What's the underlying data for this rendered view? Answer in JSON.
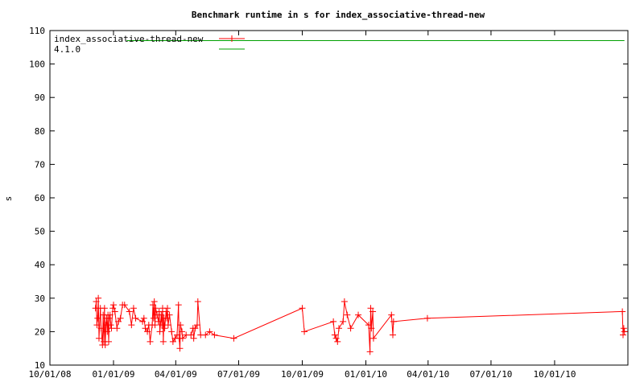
{
  "chart_data": {
    "type": "line",
    "title": "Benchmark runtime in s for index_associative-thread-new",
    "xlabel": "",
    "ylabel": "s",
    "ylim": [
      10,
      110
    ],
    "xlim": [
      "2008-10-01",
      "2011-01-15"
    ],
    "yticks": [
      10,
      20,
      30,
      40,
      50,
      60,
      70,
      80,
      90,
      100,
      110
    ],
    "xticks": [
      "10/01/08",
      "01/01/09",
      "04/01/09",
      "07/01/09",
      "10/01/09",
      "01/01/10",
      "04/01/10",
      "07/01/10",
      "10/01/10"
    ],
    "legend_position": "top-left",
    "grid": false,
    "series": [
      {
        "name": "index_associative-thread-new",
        "color": "#ff0000",
        "marker": "plus",
        "points": [
          [
            "2008-12-06",
            27
          ],
          [
            "2008-12-07",
            29
          ],
          [
            "2008-12-08",
            22
          ],
          [
            "2008-12-09",
            24
          ],
          [
            "2008-12-10",
            30
          ],
          [
            "2008-12-11",
            18
          ],
          [
            "2008-12-13",
            27
          ],
          [
            "2008-12-14",
            21
          ],
          [
            "2008-12-16",
            16
          ],
          [
            "2008-12-17",
            25
          ],
          [
            "2008-12-18",
            17
          ],
          [
            "2008-12-19",
            27
          ],
          [
            "2008-12-20",
            16
          ],
          [
            "2008-12-21",
            22
          ],
          [
            "2008-12-22",
            24
          ],
          [
            "2008-12-23",
            20
          ],
          [
            "2008-12-24",
            25
          ],
          [
            "2008-12-25",
            17
          ],
          [
            "2008-12-26",
            24
          ],
          [
            "2008-12-27",
            25
          ],
          [
            "2008-12-28",
            22
          ],
          [
            "2008-12-29",
            21
          ],
          [
            "2008-12-31",
            27
          ],
          [
            "2009-01-01",
            28
          ],
          [
            "2009-01-03",
            26
          ],
          [
            "2009-01-06",
            21
          ],
          [
            "2009-01-08",
            23
          ],
          [
            "2009-01-11",
            24
          ],
          [
            "2009-01-14",
            28
          ],
          [
            "2009-01-17",
            28
          ],
          [
            "2009-01-24",
            26
          ],
          [
            "2009-01-27",
            22
          ],
          [
            "2009-01-30",
            27
          ],
          [
            "2009-02-02",
            24
          ],
          [
            "2009-02-12",
            23
          ],
          [
            "2009-02-14",
            24
          ],
          [
            "2009-02-16",
            21
          ],
          [
            "2009-02-19",
            20
          ],
          [
            "2009-02-21",
            22
          ],
          [
            "2009-02-23",
            17
          ],
          [
            "2009-02-26",
            22
          ],
          [
            "2009-02-27",
            28
          ],
          [
            "2009-02-28",
            24
          ],
          [
            "2009-03-01",
            29
          ],
          [
            "2009-03-02",
            22
          ],
          [
            "2009-03-03",
            27
          ],
          [
            "2009-03-05",
            25
          ],
          [
            "2009-03-07",
            23
          ],
          [
            "2009-03-08",
            26
          ],
          [
            "2009-03-09",
            20
          ],
          [
            "2009-03-11",
            25
          ],
          [
            "2009-03-12",
            22
          ],
          [
            "2009-03-13",
            27
          ],
          [
            "2009-03-14",
            17
          ],
          [
            "2009-03-15",
            24
          ],
          [
            "2009-03-16",
            21
          ],
          [
            "2009-03-18",
            26
          ],
          [
            "2009-03-19",
            24
          ],
          [
            "2009-03-20",
            27
          ],
          [
            "2009-03-21",
            22
          ],
          [
            "2009-03-23",
            25
          ],
          [
            "2009-03-26",
            20
          ],
          [
            "2009-03-28",
            17
          ],
          [
            "2009-03-31",
            18
          ],
          [
            "2009-04-03",
            19
          ],
          [
            "2009-04-05",
            28
          ],
          [
            "2009-04-06",
            18
          ],
          [
            "2009-04-07",
            15
          ],
          [
            "2009-04-08",
            22
          ],
          [
            "2009-04-10",
            20
          ],
          [
            "2009-04-11",
            18
          ],
          [
            "2009-04-16",
            19
          ],
          [
            "2009-04-23",
            19
          ],
          [
            "2009-04-26",
            21
          ],
          [
            "2009-04-27",
            18
          ],
          [
            "2009-04-29",
            21
          ],
          [
            "2009-05-02",
            22
          ],
          [
            "2009-05-03",
            29
          ],
          [
            "2009-05-07",
            19
          ],
          [
            "2009-05-14",
            19
          ],
          [
            "2009-05-20",
            20
          ],
          [
            "2009-05-27",
            19
          ],
          [
            "2009-06-24",
            18
          ],
          [
            "2009-10-01",
            27
          ],
          [
            "2009-10-04",
            20
          ],
          [
            "2009-11-15",
            23
          ],
          [
            "2009-11-17",
            19
          ],
          [
            "2009-11-19",
            18
          ],
          [
            "2009-11-21",
            17
          ],
          [
            "2009-11-23",
            21
          ],
          [
            "2009-11-29",
            23
          ],
          [
            "2009-12-01",
            29
          ],
          [
            "2009-12-05",
            25
          ],
          [
            "2009-12-10",
            21
          ],
          [
            "2009-12-21",
            25
          ],
          [
            "2010-01-05",
            22
          ],
          [
            "2010-01-07",
            14
          ],
          [
            "2010-01-08",
            27
          ],
          [
            "2010-01-09",
            21
          ],
          [
            "2010-01-11",
            26
          ],
          [
            "2010-01-12",
            18
          ],
          [
            "2010-02-07",
            25
          ],
          [
            "2010-02-09",
            19
          ],
          [
            "2010-02-10",
            23
          ],
          [
            "2010-03-31",
            24
          ],
          [
            "2011-01-07",
            26
          ],
          [
            "2011-01-08",
            19
          ],
          [
            "2011-01-09",
            21
          ],
          [
            "2011-01-10",
            20
          ]
        ]
      },
      {
        "name": "4.1.0",
        "color": "#00a000",
        "marker": "none",
        "points": [
          [
            "2009-01-20",
            107
          ],
          [
            "2011-01-10",
            107
          ]
        ]
      }
    ]
  }
}
